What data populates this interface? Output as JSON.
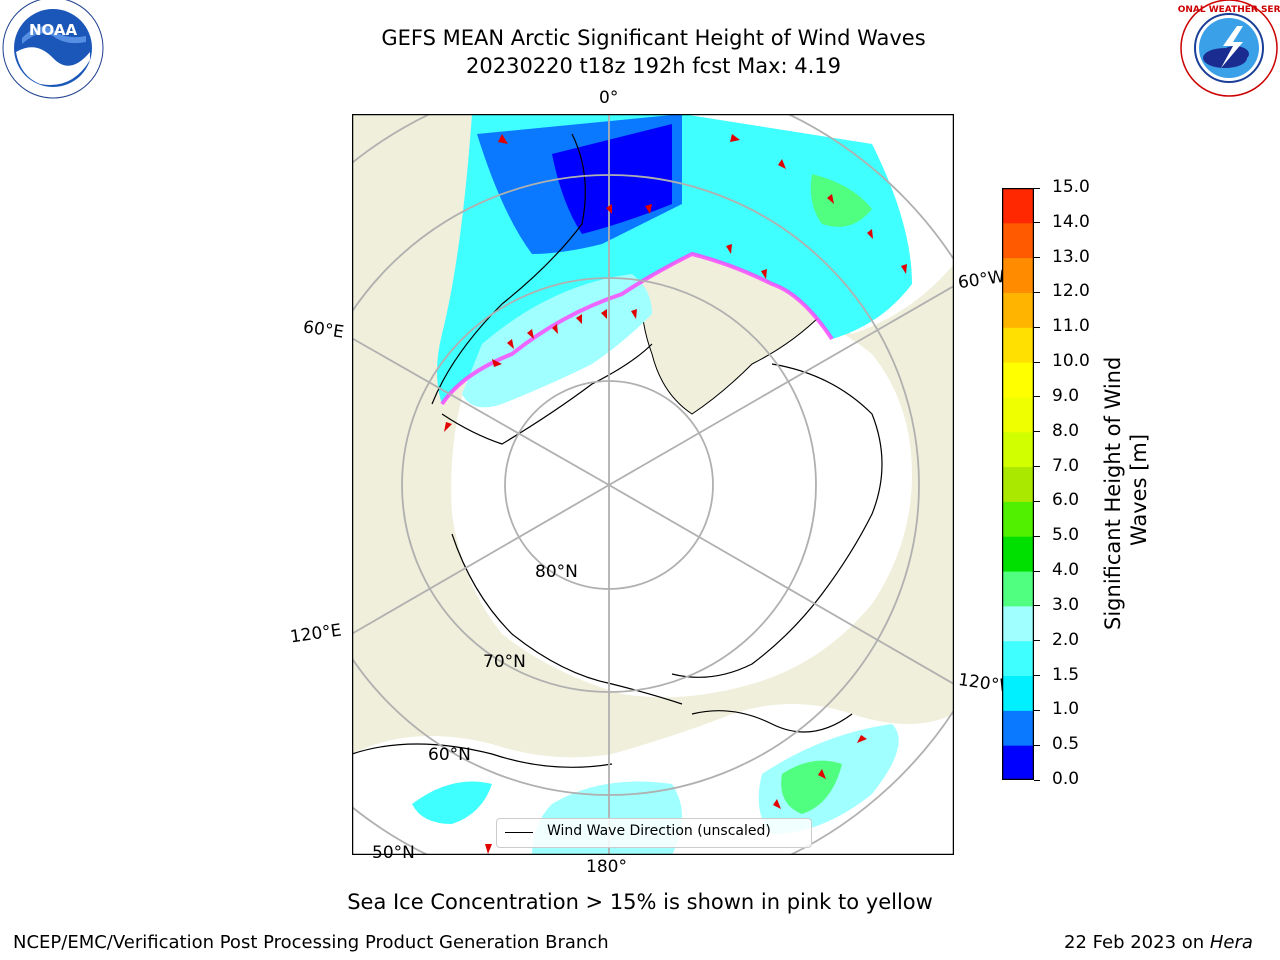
{
  "title": "GEFS MEAN Arctic Significant Height of Wind Waves",
  "subtitle": "20230220 t18z 192h fcst   Max: 4.19",
  "logos": {
    "noaa_text": "NOAA",
    "noaa_ring": "NATIONAL OCEANIC AND ATMOSPHERIC ADMINISTRATION · U.S. DEPARTMENT OF COMMERCE",
    "nws_ring": "NATIONAL WEATHER SERVICE"
  },
  "map": {
    "meridian_labels": [
      "0°",
      "60°W",
      "120°W",
      "180°",
      "120°E",
      "60°E"
    ],
    "latitude_labels": [
      "80°N",
      "70°N",
      "60°N",
      "50°N"
    ],
    "legend_label": "Wind Wave Direction (unscaled)",
    "colors": {
      "land": "#efefdb",
      "ocean_ice": "#ffffff",
      "coast": "#000000",
      "grid": "#b0b0b0",
      "arrow": "#e00000"
    }
  },
  "colorbar": {
    "label": "Significant Height of Wind Waves [m]",
    "label_lines": [
      "Significant Height of Wind",
      "Waves [m]"
    ],
    "ticks": [
      "0.0",
      "0.5",
      "1.0",
      "1.5",
      "2.0",
      "3.0",
      "4.0",
      "5.0",
      "6.0",
      "7.0",
      "8.0",
      "9.0",
      "10.0",
      "11.0",
      "12.0",
      "13.0",
      "14.0",
      "15.0"
    ],
    "colors": [
      "#0000ff",
      "#0a78ff",
      "#00f0ff",
      "#40ffff",
      "#a0ffff",
      "#50ff80",
      "#00e000",
      "#50f000",
      "#aae800",
      "#d2ff00",
      "#f0ff00",
      "#ffff00",
      "#ffe000",
      "#ffb400",
      "#ff8c00",
      "#ff5a00",
      "#ff2800"
    ]
  },
  "footer": {
    "note": "Sea Ice Concentration > 15% is shown in pink to yellow",
    "left": "NCEP/EMC/Verification Post Processing Product Generation Branch",
    "right_prefix": "22 Feb 2023 on ",
    "right_host": "Hera"
  }
}
